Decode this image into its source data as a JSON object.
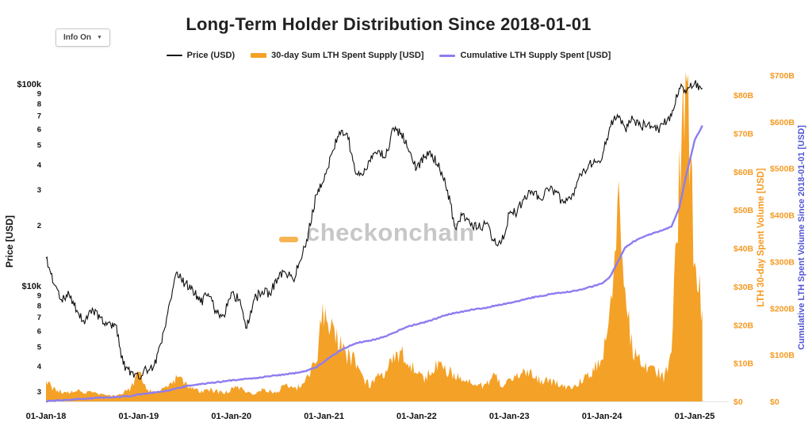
{
  "title": "Long-Term Holder Distribution Since 2018-01-01",
  "controls": {
    "info_button_label": "Info On",
    "caret": "▼"
  },
  "watermark": "checkonchain",
  "chart_data": {
    "type": "line",
    "title": "Long-Term Holder Distribution Since 2018-01-01",
    "grid": false,
    "legend_position": "top",
    "x_start": "2018-01",
    "x_step": "1 month",
    "x_tick_labels": [
      "01-Jan-18",
      "01-Jan-19",
      "01-Jan-20",
      "01-Jan-21",
      "01-Jan-22",
      "01-Jan-23",
      "01-Jan-24",
      "01-Jan-25"
    ],
    "x_tick_months": [
      0,
      12,
      24,
      36,
      48,
      60,
      72,
      84
    ],
    "series": [
      {
        "name": "Price (USD)",
        "axis": "price",
        "style": "line",
        "color": "#111111",
        "monthly_values": [
          13800,
          10300,
          8600,
          9100,
          7600,
          6500,
          7800,
          7000,
          6600,
          6450,
          4100,
          3800,
          3500,
          3850,
          4050,
          5250,
          8300,
          11800,
          10300,
          9700,
          8300,
          9200,
          7600,
          7200,
          9350,
          8600,
          6200,
          8650,
          9450,
          9150,
          11000,
          11700,
          10800,
          13500,
          18500,
          28500,
          33500,
          45500,
          58500,
          57500,
          37500,
          35500,
          41500,
          47000,
          43800,
          61000,
          57500,
          46500,
          38500,
          43500,
          45500,
          38000,
          30000,
          19500,
          23000,
          20000,
          19500,
          20500,
          16800,
          16600,
          23000,
          23200,
          28300,
          29300,
          27200,
          30400,
          29300,
          26000,
          27000,
          34500,
          37700,
          42600,
          42800,
          61500,
          71000,
          60500,
          67500,
          62000,
          64500,
          59000,
          63500,
          70000,
          96000,
          94500,
          102000,
          96000
        ]
      },
      {
        "name": "30-day Sum LTH Spent Supply [USD]",
        "axis": "spent",
        "style": "area",
        "color": "#f4a127",
        "units": "billion USD",
        "monthly_values": [
          5.5,
          3.2,
          2.6,
          2.2,
          2.8,
          2.1,
          2.4,
          1.9,
          1.6,
          1.5,
          2.2,
          3.2,
          8.0,
          3.2,
          2.2,
          3.0,
          4.6,
          6.0,
          5.0,
          3.4,
          2.6,
          3.2,
          2.6,
          2.1,
          3.2,
          3.6,
          2.4,
          2.0,
          3.0,
          2.6,
          2.7,
          4.2,
          3.1,
          4.0,
          6.5,
          11.5,
          24.0,
          19.5,
          15.5,
          12.0,
          10.5,
          6.0,
          4.2,
          6.5,
          8.0,
          12.0,
          13.0,
          9.5,
          8.0,
          6.0,
          8.5,
          10.5,
          8.0,
          7.0,
          5.2,
          5.0,
          4.2,
          4.0,
          7.0,
          4.2,
          5.0,
          6.5,
          7.5,
          7.0,
          5.2,
          5.5,
          5.0,
          4.0,
          3.2,
          5.0,
          7.0,
          8.5,
          10.0,
          21.0,
          52.0,
          27.0,
          13.0,
          10.0,
          8.5,
          8.0,
          6.0,
          11.0,
          58.0,
          84.0,
          36.0,
          24.0
        ]
      },
      {
        "name": "Cumulative LTH Supply Spent [USD]",
        "axis": "cumulative",
        "style": "line",
        "color": "#8d7df0",
        "units": "billion USD",
        "monthly_values": [
          0,
          1.5,
          2.5,
          3.5,
          4.5,
          5.5,
          6.5,
          7.5,
          8.5,
          9.5,
          10.5,
          12,
          15,
          17,
          19,
          21,
          24,
          28,
          32,
          35,
          37,
          39,
          41,
          43,
          45,
          47,
          49,
          50,
          52,
          54,
          56,
          58,
          60,
          63,
          67,
          73,
          85,
          97,
          108,
          117,
          124,
          128,
          131,
          135,
          140,
          147,
          155,
          161,
          166,
          170,
          175,
          181,
          186,
          190,
          193,
          196,
          199,
          201,
          205,
          208,
          211,
          215,
          219,
          223,
          226,
          229,
          232,
          234,
          236,
          239,
          243,
          248,
          253,
          266,
          298,
          330,
          342,
          350,
          357,
          363,
          368,
          375,
          415,
          492,
          560,
          592
        ]
      }
    ],
    "axes": {
      "price": {
        "title": "Price [USD]",
        "scale": "log",
        "range": [
          3000,
          100000
        ],
        "color": "#111111",
        "tick_values": [
          100000,
          90000,
          80000,
          70000,
          60000,
          50000,
          40000,
          30000,
          20000,
          10000,
          9000,
          8000,
          7000,
          6000,
          5000,
          4000,
          3000
        ],
        "tick_labels": [
          "$100k",
          "9",
          "8",
          "7",
          "6",
          "5",
          "4",
          "3",
          "2",
          "$10k",
          "9",
          "8",
          "7",
          "6",
          "5",
          "4",
          "3"
        ]
      },
      "spent": {
        "title": "LTH 30-day Spent Volume [USD]",
        "scale": "linear",
        "range_billions": [
          0,
          80
        ],
        "color": "#f59a23",
        "tick_values": [
          0,
          10,
          20,
          30,
          40,
          50,
          60,
          70,
          80
        ],
        "tick_labels": [
          "$0",
          "$10B",
          "$20B",
          "$30B",
          "$40B",
          "$50B",
          "$60B",
          "$70B",
          "$80B"
        ]
      },
      "cumulative": {
        "title": "Cumulative LTH Spent Volume Since 2018-01-01 [USD]",
        "scale": "linear",
        "range_billions": [
          0,
          700
        ],
        "color": "#5055d5",
        "tick_color": "#f59a23",
        "tick_values": [
          0,
          100,
          200,
          300,
          400,
          500,
          600,
          700
        ],
        "tick_labels": [
          "$0",
          "$100B",
          "$200B",
          "$300B",
          "$400B",
          "$500B",
          "$600B",
          "$700B"
        ]
      }
    }
  }
}
